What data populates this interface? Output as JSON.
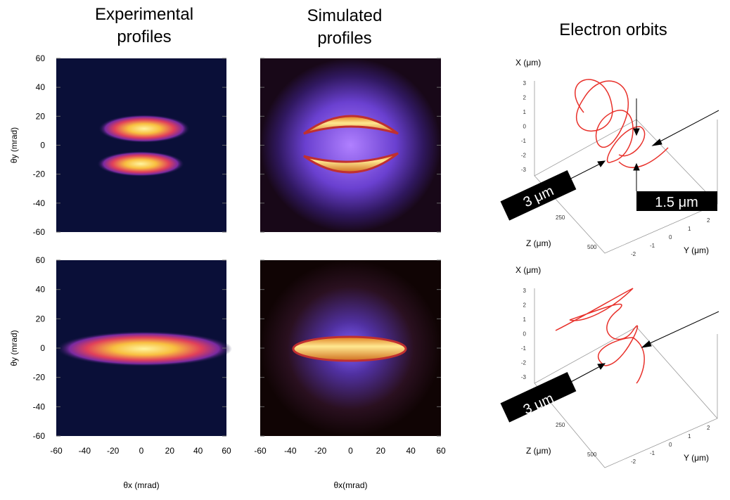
{
  "headers": [
    [
      "Experimental",
      "profiles"
    ],
    [
      "Simulated",
      "profiles"
    ],
    [
      "Electron orbits"
    ]
  ],
  "y_axis_label": "θy (mrad)",
  "profile_y_ticks": [
    "60",
    "40",
    "20",
    "0",
    "-20",
    "-40",
    "-60"
  ],
  "profile_x_ticks": [
    "-60",
    "-40",
    "-20",
    "0",
    "20",
    "40",
    "60"
  ],
  "x_axis_labels": [
    "θx (mrad)",
    "θx(mrad)"
  ],
  "orbits": [
    {
      "x_label": "X (μm)",
      "x_ticks": [
        "3",
        "2",
        "1",
        "0",
        "-1",
        "-2",
        "-3"
      ],
      "z_label": "Z (μm)",
      "z_ticks": [
        "250",
        "500"
      ],
      "y_label": "Y (μm)",
      "y_ticks": [
        "2",
        "1",
        "0",
        "-1",
        "-2"
      ],
      "callouts": [
        "3 μm",
        "1.5 μm"
      ]
    },
    {
      "x_label": "X (μm)",
      "x_ticks": [
        "3",
        "2",
        "1",
        "0",
        "-1",
        "-2",
        "-3"
      ],
      "z_label": "Z (μm)",
      "z_ticks": [
        "250",
        "500"
      ],
      "y_label": "Y (μm)",
      "y_ticks": [
        "2",
        "1",
        "0",
        "-1",
        "-2"
      ],
      "callouts": [
        "3 μm"
      ]
    }
  ]
}
